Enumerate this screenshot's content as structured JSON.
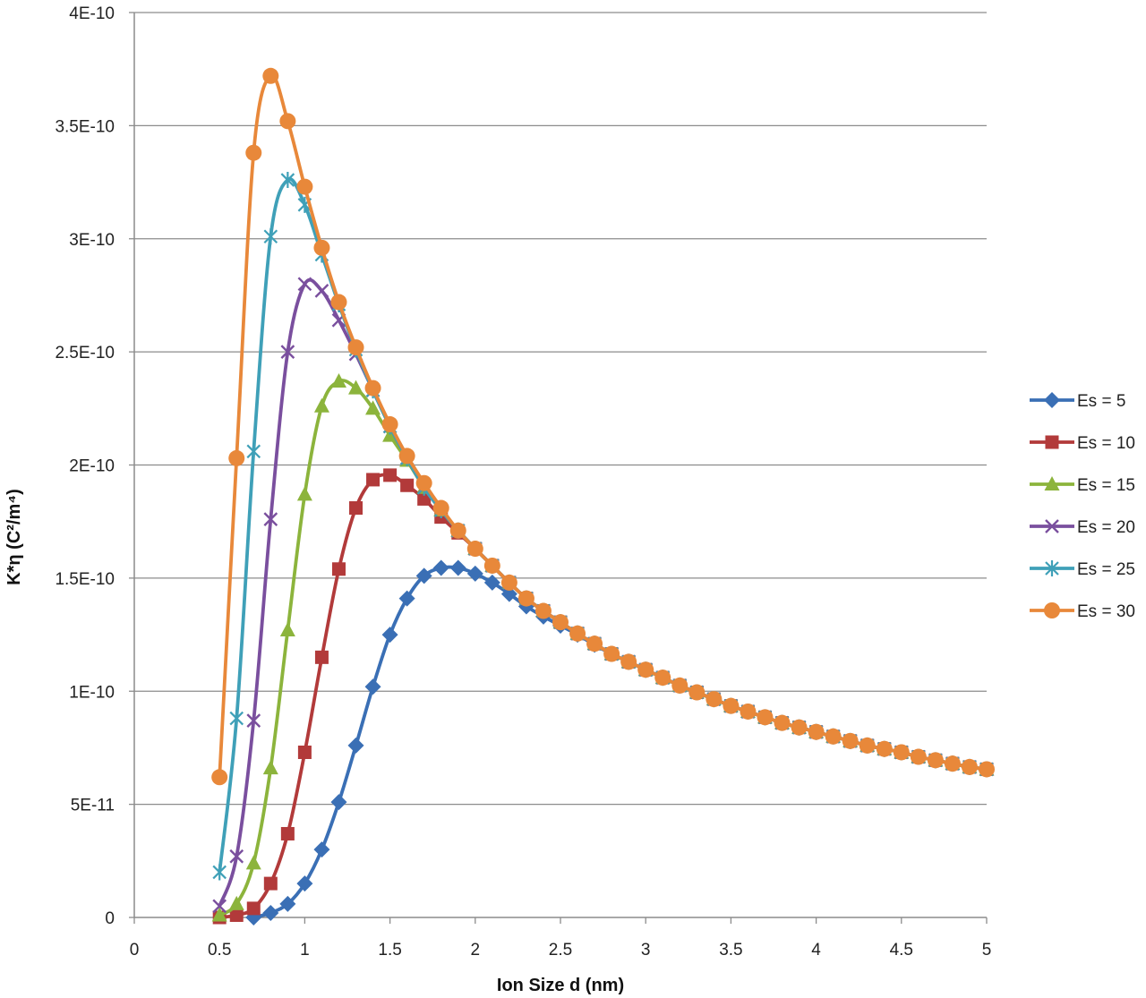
{
  "chart_data": {
    "type": "line",
    "xlabel": "Ion Size d (nm)",
    "ylabel": "K*η (C²/m⁴)",
    "xlim": [
      0,
      5
    ],
    "ylim": [
      0,
      4e-10
    ],
    "x_ticks": [
      0,
      0.5,
      1,
      1.5,
      2,
      2.5,
      3,
      3.5,
      4,
      4.5,
      5
    ],
    "x_tick_labels": [
      "0",
      "0.5",
      "1",
      "1.5",
      "2",
      "2.5",
      "3",
      "3.5",
      "4",
      "4.5",
      "5"
    ],
    "y_ticks": [
      0,
      5e-11,
      1e-10,
      1.5e-10,
      2e-10,
      2.5e-10,
      3e-10,
      3.5e-10,
      4e-10
    ],
    "y_tick_labels": [
      "0",
      "5E-11",
      "1E-10",
      "1.5E-10",
      "2E-10",
      "2.5E-10",
      "3E-10",
      "3.5E-10",
      "4E-10"
    ],
    "grid": "horizontal",
    "legend_position": "right",
    "series": [
      {
        "name": "Es = 5",
        "color": "#3a6fb5",
        "marker": "diamond",
        "x": [
          0.7,
          0.8,
          0.9,
          1.0,
          1.1,
          1.2,
          1.3,
          1.4,
          1.5,
          1.6,
          1.7,
          1.8,
          1.9,
          2.0,
          2.1,
          2.2,
          2.3,
          2.4,
          2.5,
          2.6,
          2.7,
          2.8,
          2.9,
          3.0,
          3.1,
          3.2,
          3.3,
          3.4,
          3.5,
          3.6,
          3.7,
          3.8,
          3.9,
          4.0,
          4.1,
          4.2,
          4.3,
          4.4,
          4.5,
          4.6,
          4.7,
          4.8,
          4.9,
          5.0
        ],
        "y": [
          0.0,
          2e-12,
          6e-12,
          1.5e-11,
          3e-11,
          5.1e-11,
          7.6e-11,
          1.02e-10,
          1.25e-10,
          1.41e-10,
          1.51e-10,
          1.545e-10,
          1.545e-10,
          1.52e-10,
          1.48e-10,
          1.43e-10,
          1.375e-10,
          1.33e-10,
          1.29e-10,
          1.25e-10,
          1.205e-10,
          1.165e-10,
          1.13e-10,
          1.095e-10,
          1.06e-10,
          1.025e-10,
          9.95e-11,
          9.65e-11,
          9.35e-11,
          9.1e-11,
          8.85e-11,
          8.6e-11,
          8.4e-11,
          8.2e-11,
          8e-11,
          7.8e-11,
          7.6e-11,
          7.45e-11,
          7.3e-11,
          7.1e-11,
          6.95e-11,
          6.8e-11,
          6.65e-11,
          6.55e-11
        ]
      },
      {
        "name": "Es = 10",
        "color": "#b23a3a",
        "marker": "square",
        "x": [
          0.5,
          0.6,
          0.7,
          0.8,
          0.9,
          1.0,
          1.1,
          1.2,
          1.3,
          1.4,
          1.5,
          1.6,
          1.7,
          1.8,
          1.9,
          2.0,
          2.1,
          2.2,
          2.3,
          2.4,
          2.5,
          2.6,
          2.7,
          2.8,
          2.9,
          3.0,
          3.1,
          3.2,
          3.3,
          3.4,
          3.5,
          3.6,
          3.7,
          3.8,
          3.9,
          4.0,
          4.1,
          4.2,
          4.3,
          4.4,
          4.5,
          4.6,
          4.7,
          4.8,
          4.9,
          5.0
        ],
        "y": [
          0.0,
          1e-12,
          4e-12,
          1.5e-11,
          3.7e-11,
          7.3e-11,
          1.15e-10,
          1.54e-10,
          1.81e-10,
          1.935e-10,
          1.955e-10,
          1.91e-10,
          1.85e-10,
          1.77e-10,
          1.7e-10,
          1.63e-10,
          1.555e-10,
          1.48e-10,
          1.41e-10,
          1.355e-10,
          1.305e-10,
          1.255e-10,
          1.21e-10,
          1.165e-10,
          1.13e-10,
          1.095e-10,
          1.06e-10,
          1.025e-10,
          9.95e-11,
          9.65e-11,
          9.35e-11,
          9.1e-11,
          8.85e-11,
          8.6e-11,
          8.4e-11,
          8.2e-11,
          8e-11,
          7.8e-11,
          7.6e-11,
          7.45e-11,
          7.3e-11,
          7.1e-11,
          6.95e-11,
          6.8e-11,
          6.65e-11,
          6.55e-11
        ]
      },
      {
        "name": "Es = 15",
        "color": "#8cb43c",
        "marker": "triangle",
        "x": [
          0.5,
          0.6,
          0.7,
          0.8,
          0.9,
          1.0,
          1.1,
          1.2,
          1.3,
          1.4,
          1.5,
          1.6,
          1.7,
          1.8,
          1.9,
          2.0,
          2.1,
          2.2,
          2.3,
          2.4,
          2.5,
          2.6,
          2.7,
          2.8,
          2.9,
          3.0,
          3.1,
          3.2,
          3.3,
          3.4,
          3.5,
          3.6,
          3.7,
          3.8,
          3.9,
          4.0,
          4.1,
          4.2,
          4.3,
          4.4,
          4.5,
          4.6,
          4.7,
          4.8,
          4.9,
          5.0
        ],
        "y": [
          1e-12,
          6e-12,
          2.4e-11,
          6.6e-11,
          1.27e-10,
          1.87e-10,
          2.26e-10,
          2.37e-10,
          2.34e-10,
          2.25e-10,
          2.13e-10,
          2.02e-10,
          1.9e-10,
          1.8e-10,
          1.71e-10,
          1.63e-10,
          1.555e-10,
          1.48e-10,
          1.41e-10,
          1.355e-10,
          1.305e-10,
          1.255e-10,
          1.21e-10,
          1.165e-10,
          1.13e-10,
          1.095e-10,
          1.06e-10,
          1.025e-10,
          9.95e-11,
          9.65e-11,
          9.35e-11,
          9.1e-11,
          8.85e-11,
          8.6e-11,
          8.4e-11,
          8.2e-11,
          8e-11,
          7.8e-11,
          7.6e-11,
          7.45e-11,
          7.3e-11,
          7.1e-11,
          6.95e-11,
          6.8e-11,
          6.65e-11,
          6.55e-11
        ]
      },
      {
        "name": "Es = 20",
        "color": "#7a4f9e",
        "marker": "x",
        "x": [
          0.5,
          0.6,
          0.7,
          0.8,
          0.9,
          1.0,
          1.1,
          1.2,
          1.3,
          1.4,
          1.5,
          1.6,
          1.7,
          1.8,
          1.9,
          2.0,
          2.1,
          2.2,
          2.3,
          2.4,
          2.5,
          2.6,
          2.7,
          2.8,
          2.9,
          3.0,
          3.1,
          3.2,
          3.3,
          3.4,
          3.5,
          3.6,
          3.7,
          3.8,
          3.9,
          4.0,
          4.1,
          4.2,
          4.3,
          4.4,
          4.5,
          4.6,
          4.7,
          4.8,
          4.9,
          5.0
        ],
        "y": [
          5e-12,
          2.7e-11,
          8.7e-11,
          1.76e-10,
          2.5e-10,
          2.8e-10,
          2.77e-10,
          2.64e-10,
          2.49e-10,
          2.33e-10,
          2.17e-10,
          2.03e-10,
          1.9e-10,
          1.8e-10,
          1.71e-10,
          1.63e-10,
          1.555e-10,
          1.48e-10,
          1.41e-10,
          1.355e-10,
          1.305e-10,
          1.255e-10,
          1.21e-10,
          1.165e-10,
          1.13e-10,
          1.095e-10,
          1.06e-10,
          1.025e-10,
          9.95e-11,
          9.65e-11,
          9.35e-11,
          9.1e-11,
          8.85e-11,
          8.6e-11,
          8.4e-11,
          8.2e-11,
          8e-11,
          7.8e-11,
          7.6e-11,
          7.45e-11,
          7.3e-11,
          7.1e-11,
          6.95e-11,
          6.8e-11,
          6.65e-11,
          6.55e-11
        ]
      },
      {
        "name": "Es = 25",
        "color": "#3fa0b8",
        "marker": "star",
        "x": [
          0.5,
          0.6,
          0.7,
          0.8,
          0.9,
          1.0,
          1.1,
          1.2,
          1.3,
          1.4,
          1.5,
          1.6,
          1.7,
          1.8,
          1.9,
          2.0,
          2.1,
          2.2,
          2.3,
          2.4,
          2.5,
          2.6,
          2.7,
          2.8,
          2.9,
          3.0,
          3.1,
          3.2,
          3.3,
          3.4,
          3.5,
          3.6,
          3.7,
          3.8,
          3.9,
          4.0,
          4.1,
          4.2,
          4.3,
          4.4,
          4.5,
          4.6,
          4.7,
          4.8,
          4.9,
          5.0
        ],
        "y": [
          2e-11,
          8.8e-11,
          2.06e-10,
          3.01e-10,
          3.26e-10,
          3.15e-10,
          2.93e-10,
          2.71e-10,
          2.51e-10,
          2.33e-10,
          2.17e-10,
          2.03e-10,
          1.9e-10,
          1.8e-10,
          1.71e-10,
          1.63e-10,
          1.555e-10,
          1.48e-10,
          1.41e-10,
          1.355e-10,
          1.305e-10,
          1.255e-10,
          1.21e-10,
          1.165e-10,
          1.13e-10,
          1.095e-10,
          1.06e-10,
          1.025e-10,
          9.95e-11,
          9.65e-11,
          9.35e-11,
          9.1e-11,
          8.85e-11,
          8.6e-11,
          8.4e-11,
          8.2e-11,
          8e-11,
          7.8e-11,
          7.6e-11,
          7.45e-11,
          7.3e-11,
          7.1e-11,
          6.95e-11,
          6.8e-11,
          6.65e-11,
          6.55e-11
        ]
      },
      {
        "name": "Es = 30",
        "color": "#e8883a",
        "marker": "circle",
        "x": [
          0.5,
          0.6,
          0.7,
          0.8,
          0.9,
          1.0,
          1.1,
          1.2,
          1.3,
          1.4,
          1.5,
          1.6,
          1.7,
          1.8,
          1.9,
          2.0,
          2.1,
          2.2,
          2.3,
          2.4,
          2.5,
          2.6,
          2.7,
          2.8,
          2.9,
          3.0,
          3.1,
          3.2,
          3.3,
          3.4,
          3.5,
          3.6,
          3.7,
          3.8,
          3.9,
          4.0,
          4.1,
          4.2,
          4.3,
          4.4,
          4.5,
          4.6,
          4.7,
          4.8,
          4.9,
          5.0
        ],
        "y": [
          6.2e-11,
          2.03e-10,
          3.38e-10,
          3.72e-10,
          3.52e-10,
          3.23e-10,
          2.96e-10,
          2.72e-10,
          2.52e-10,
          2.34e-10,
          2.18e-10,
          2.04e-10,
          1.92e-10,
          1.81e-10,
          1.71e-10,
          1.63e-10,
          1.555e-10,
          1.48e-10,
          1.41e-10,
          1.355e-10,
          1.305e-10,
          1.255e-10,
          1.21e-10,
          1.165e-10,
          1.13e-10,
          1.095e-10,
          1.06e-10,
          1.025e-10,
          9.95e-11,
          9.65e-11,
          9.35e-11,
          9.1e-11,
          8.85e-11,
          8.6e-11,
          8.4e-11,
          8.2e-11,
          8e-11,
          7.8e-11,
          7.6e-11,
          7.45e-11,
          7.3e-11,
          7.1e-11,
          6.95e-11,
          6.8e-11,
          6.65e-11,
          6.55e-11
        ]
      }
    ]
  }
}
